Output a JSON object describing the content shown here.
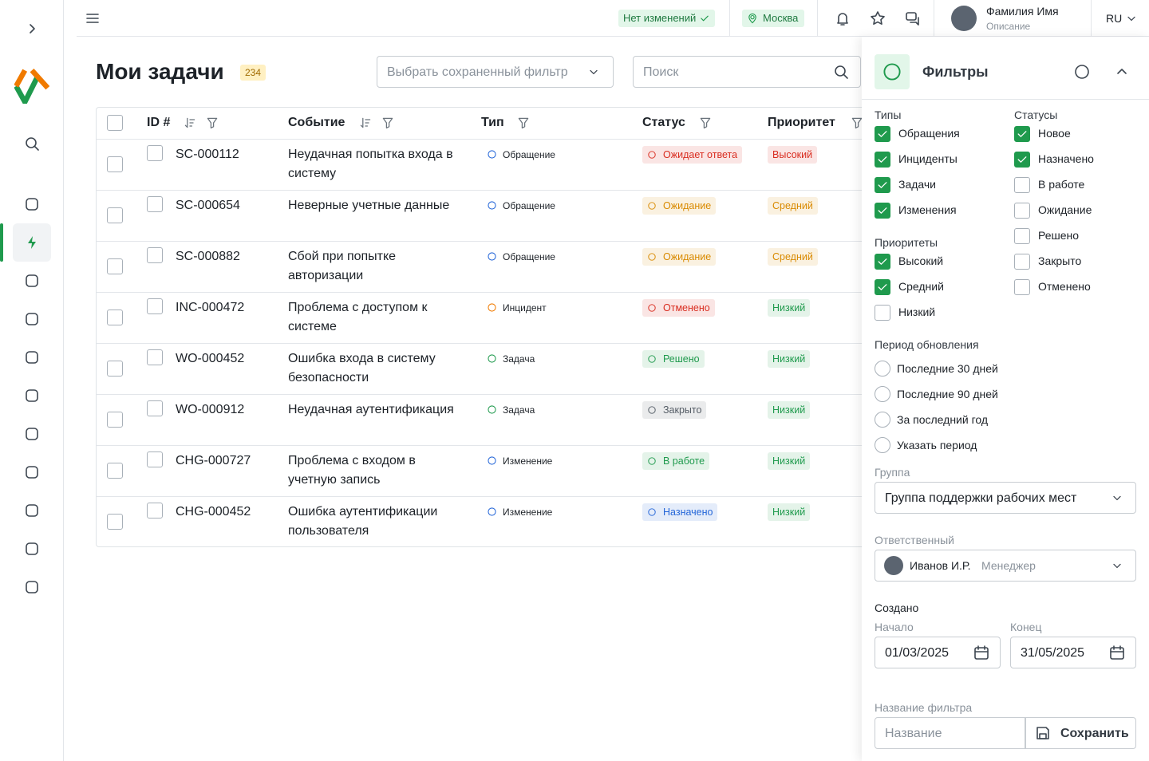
{
  "topbar": {
    "status": "Нет изменений",
    "location": "Москва",
    "user_name": "Фамилия Имя",
    "user_desc": "Описание",
    "lang": "RU"
  },
  "page": {
    "title": "Мои задачи",
    "count": 234,
    "saved_filter": "Выбрать сохраненный фильтр",
    "search": "Поиск"
  },
  "table": {
    "columns": [
      "ID #",
      "Событие",
      "Тип",
      "Статус",
      "Приоритет"
    ],
    "rows": [
      {
        "id": "SC-000112",
        "event": "Неудачная попытка входа в систему",
        "type": "Обращение",
        "type_color": "#2466d8",
        "status": "Ожидает ответа",
        "status_color": "#d92d20",
        "priority": "Высокий",
        "priority_color": "#d92d20"
      },
      {
        "id": "SC-000654",
        "event": "Неверные учетные данные",
        "type": "Обращение",
        "type_color": "#2466d8",
        "status": "Ожидание",
        "status_color": "#d98a00",
        "priority": "Средний",
        "priority_color": "#d98a00"
      },
      {
        "id": "SC-000882",
        "event": "Сбой при попытке авторизации",
        "type": "Обращение",
        "type_color": "#2466d8",
        "status": "Ожидание",
        "status_color": "#d98a00",
        "priority": "Средний",
        "priority_color": "#d98a00"
      },
      {
        "id": "INC-000472",
        "event": "Проблема с доступом к системе",
        "type": "Инцидент",
        "type_color": "#f07a00",
        "status": "Отменено",
        "status_color": "#d92d20",
        "priority": "Низкий",
        "priority_color": "#1f9a4d"
      },
      {
        "id": "WO-000452",
        "event": "Ошибка входа в систему безопасности",
        "type": "Задача",
        "type_color": "#1f9a4d",
        "status": "Решено",
        "status_color": "#1f9a4d",
        "priority": "Низкий",
        "priority_color": "#1f9a4d"
      },
      {
        "id": "WO-000912",
        "event": "Неудачная аутентификация",
        "type": "Задача",
        "type_color": "#1f9a4d",
        "status": "Закрыто",
        "status_color": "#555d66",
        "priority": "Низкий",
        "priority_color": "#1f9a4d"
      },
      {
        "id": "CHG-000727",
        "event": "Проблема с входом в учетную запись",
        "type": "Изменение",
        "type_color": "#2466d8",
        "status": "В работе",
        "status_color": "#1f9a4d",
        "priority": "Низкий",
        "priority_color": "#1f9a4d"
      },
      {
        "id": "CHG-000452",
        "event": "Ошибка аутентификации пользователя",
        "type": "Изменение",
        "type_color": "#2466d8",
        "status": "Назначено",
        "status_color": "#2466d8",
        "priority": "Низкий",
        "priority_color": "#1f9a4d"
      }
    ]
  },
  "filters": {
    "title": "Фильтры",
    "types": {
      "label": "Типы",
      "options": [
        {
          "label": "Обращения",
          "checked": true
        },
        {
          "label": "Инциденты",
          "checked": true
        },
        {
          "label": "Задачи",
          "checked": true
        },
        {
          "label": "Изменения",
          "checked": true
        }
      ]
    },
    "priorities": {
      "label": "Приоритеты",
      "options": [
        {
          "label": "Высокий",
          "checked": true
        },
        {
          "label": "Средний",
          "checked": true
        },
        {
          "label": "Низкий",
          "checked": false
        }
      ]
    },
    "statuses": {
      "label": "Статусы",
      "options": [
        {
          "label": "Новое",
          "checked": true
        },
        {
          "label": "Назначено",
          "checked": true
        },
        {
          "label": "В работе",
          "checked": false
        },
        {
          "label": "Ожидание",
          "checked": false
        },
        {
          "label": "Решено",
          "checked": false
        },
        {
          "label": "Закрыто",
          "checked": false
        },
        {
          "label": "Отменено",
          "checked": false
        }
      ]
    },
    "period": {
      "label": "Период обновления",
      "options": [
        "Последние 30 дней",
        "Последние 90 дней",
        "За последний год",
        "Указать период"
      ]
    },
    "group": {
      "label": "Группа",
      "value": "Группа поддержки рабочих мест"
    },
    "responsible": {
      "label": "Ответственный",
      "name": "Иванов И.Р.",
      "role": "Менеджер"
    },
    "created": {
      "label": "Создано",
      "start_label": "Начало",
      "start": "01/03/2025",
      "end_label": "Конец",
      "end": "31/05/2025"
    },
    "filter_name": {
      "label": "Название фильтра",
      "placeholder": "Название",
      "button": "Сохранить"
    }
  }
}
